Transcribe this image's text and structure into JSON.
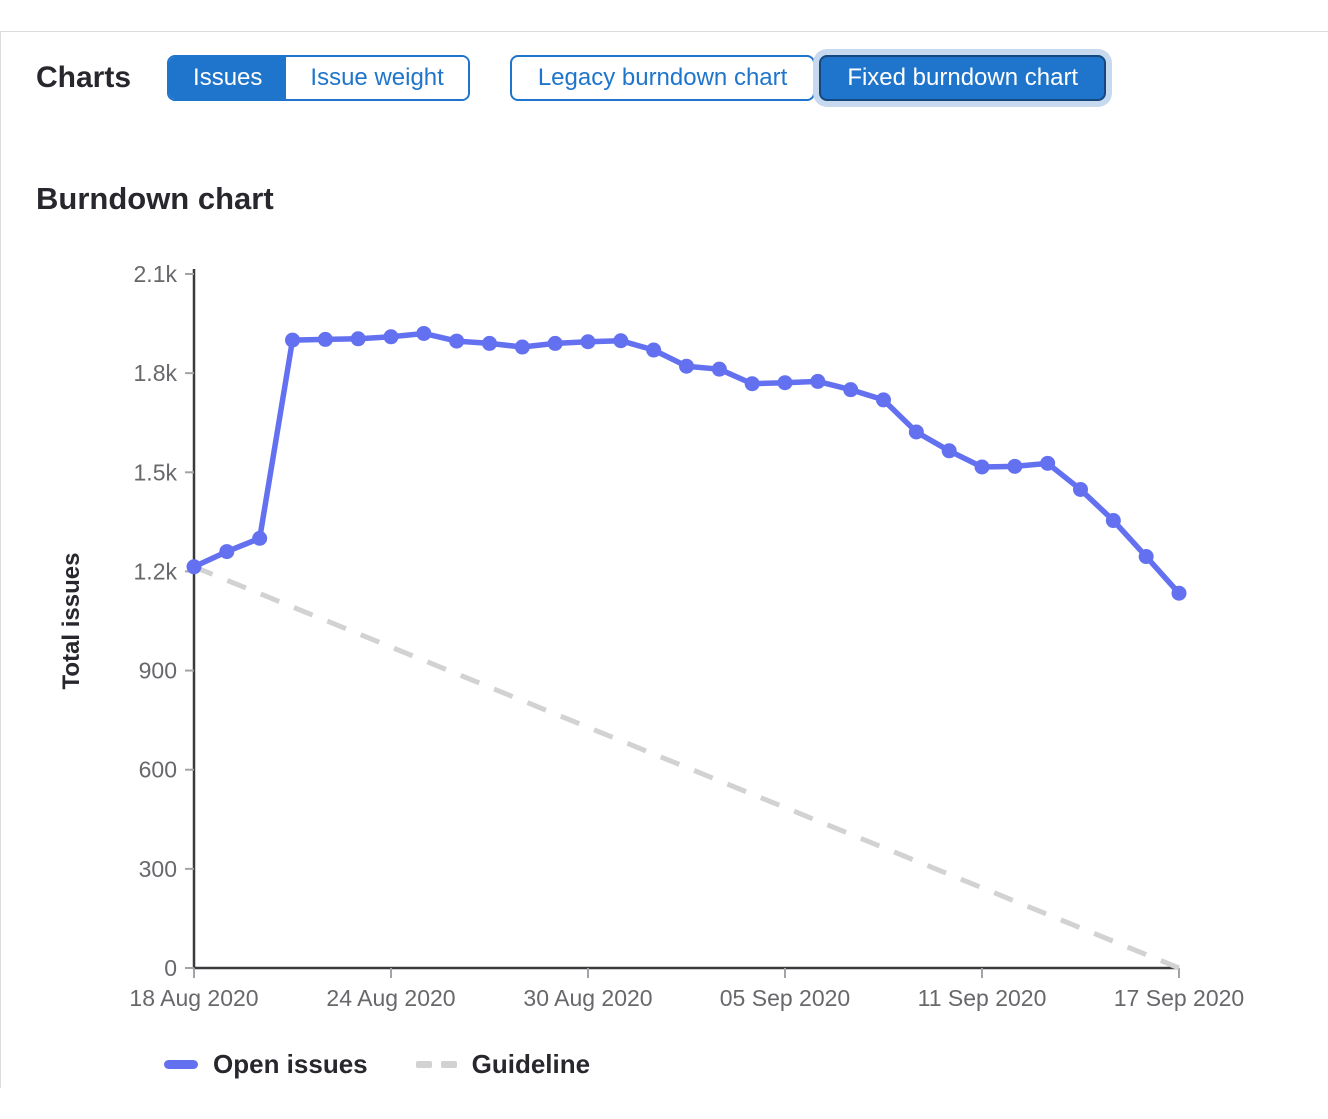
{
  "header": {
    "charts_label": "Charts",
    "issue_toggle": {
      "issues": "Issues",
      "issue_weight": "Issue weight",
      "selected": "Issues"
    },
    "chart_toggle": {
      "legacy": "Legacy burndown chart",
      "fixed": "Fixed burndown chart",
      "selected": "Fixed burndown chart"
    }
  },
  "section_title": "Burndown chart",
  "chart_data": {
    "type": "line",
    "title": "Burndown chart",
    "xlabel": "",
    "ylabel": "Total issues",
    "ylim": [
      0,
      2100
    ],
    "grid": false,
    "legend_position": "bottom",
    "y_ticks": [
      0,
      300,
      600,
      900,
      1200,
      1500,
      1800,
      2100
    ],
    "y_tick_labels": [
      "0",
      "300",
      "600",
      "900",
      "1.2k",
      "1.5k",
      "1.8k",
      "2.1k"
    ],
    "x_ticks": [
      {
        "day": 0,
        "label": "18 Aug 2020"
      },
      {
        "day": 6,
        "label": "24 Aug 2020"
      },
      {
        "day": 12,
        "label": "30 Aug 2020"
      },
      {
        "day": 18,
        "label": "05 Sep 2020"
      },
      {
        "day": 24,
        "label": "11 Sep 2020"
      },
      {
        "day": 30,
        "label": "17 Sep 2020"
      }
    ],
    "x_dates": [
      "18 Aug",
      "19 Aug",
      "20 Aug",
      "21 Aug",
      "22 Aug",
      "23 Aug",
      "24 Aug",
      "25 Aug",
      "26 Aug",
      "27 Aug",
      "28 Aug",
      "29 Aug",
      "30 Aug",
      "31 Aug",
      "01 Sep",
      "02 Sep",
      "03 Sep",
      "04 Sep",
      "05 Sep",
      "06 Sep",
      "07 Sep",
      "08 Sep",
      "09 Sep",
      "10 Sep",
      "11 Sep",
      "12 Sep",
      "13 Sep",
      "14 Sep",
      "15 Sep",
      "16 Sep",
      "17 Sep"
    ],
    "series": [
      {
        "name": "Open issues",
        "type": "line+markers",
        "color": "#6371f0",
        "values": [
          1214,
          1260,
          1300,
          1900,
          1902,
          1904,
          1910,
          1920,
          1897,
          1890,
          1879,
          1890,
          1895,
          1898,
          1870,
          1821,
          1812,
          1768,
          1771,
          1775,
          1750,
          1719,
          1622,
          1565,
          1516,
          1518,
          1527,
          1448,
          1354,
          1245,
          1134
        ]
      },
      {
        "name": "Guideline",
        "type": "dashed-line",
        "color": "#d2d2d2",
        "values_endpoints": [
          1214,
          0
        ]
      }
    ]
  },
  "colors": {
    "accent_blue": "#1f75cb",
    "button_active_border": "#14487f",
    "focus_ring": "#c6d9ef",
    "open_issues_line": "#6371f0",
    "guideline": "#d2d2d2",
    "heading_text": "#28272d",
    "tick_label": "#68686c",
    "tick_mark": "#a3a3a7",
    "axis": "#3a393e"
  }
}
